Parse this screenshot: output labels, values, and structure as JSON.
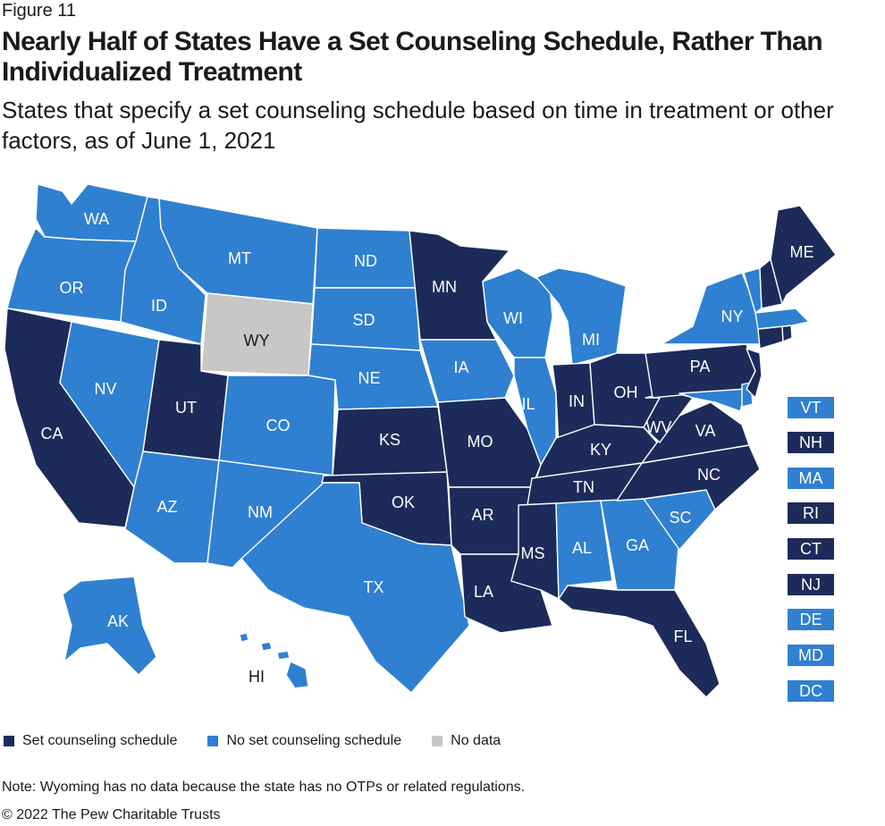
{
  "header": {
    "figure_label": "Figure 11",
    "title": "Nearly Half of States Have a Set Counseling Schedule, Rather Than Individualized Treatment",
    "subtitle": "States that specify a set counseling schedule based on time in treatment or other factors, as of June 1, 2021"
  },
  "colors": {
    "set": "#1c2b5a",
    "noset": "#2f80d1",
    "nodata": "#c9c6c6"
  },
  "legend": [
    {
      "key": "set",
      "label": "Set counseling schedule"
    },
    {
      "key": "noset",
      "label": "No set counseling schedule"
    },
    {
      "key": "nodata",
      "label": "No data"
    }
  ],
  "states": {
    "WA": "noset",
    "OR": "noset",
    "CA": "set",
    "ID": "noset",
    "NV": "noset",
    "AZ": "noset",
    "MT": "noset",
    "WY": "nodata",
    "UT": "set",
    "CO": "noset",
    "NM": "noset",
    "ND": "noset",
    "SD": "noset",
    "NE": "noset",
    "KS": "set",
    "OK": "set",
    "TX": "noset",
    "MN": "set",
    "IA": "noset",
    "MO": "set",
    "AR": "set",
    "LA": "set",
    "WI": "noset",
    "IL": "noset",
    "MI": "noset",
    "IN": "set",
    "OH": "set",
    "KY": "set",
    "TN": "set",
    "MS": "set",
    "AL": "noset",
    "GA": "noset",
    "FL": "set",
    "SC": "noset",
    "NC": "set",
    "VA": "set",
    "WV": "set",
    "PA": "set",
    "NY": "noset",
    "ME": "set",
    "AK": "noset",
    "HI": "noset",
    "VT": "noset",
    "NH": "set",
    "MA": "noset",
    "RI": "set",
    "CT": "set",
    "NJ": "set",
    "DE": "noset",
    "MD": "noset",
    "DC": "noset"
  },
  "small_states": [
    "VT",
    "NH",
    "MA",
    "RI",
    "CT",
    "NJ",
    "DE",
    "MD",
    "DC"
  ],
  "note": "Note: Wyoming has no data because the state has no OTPs or related regulations.",
  "copyright": "© 2022 The Pew Charitable Trusts"
}
